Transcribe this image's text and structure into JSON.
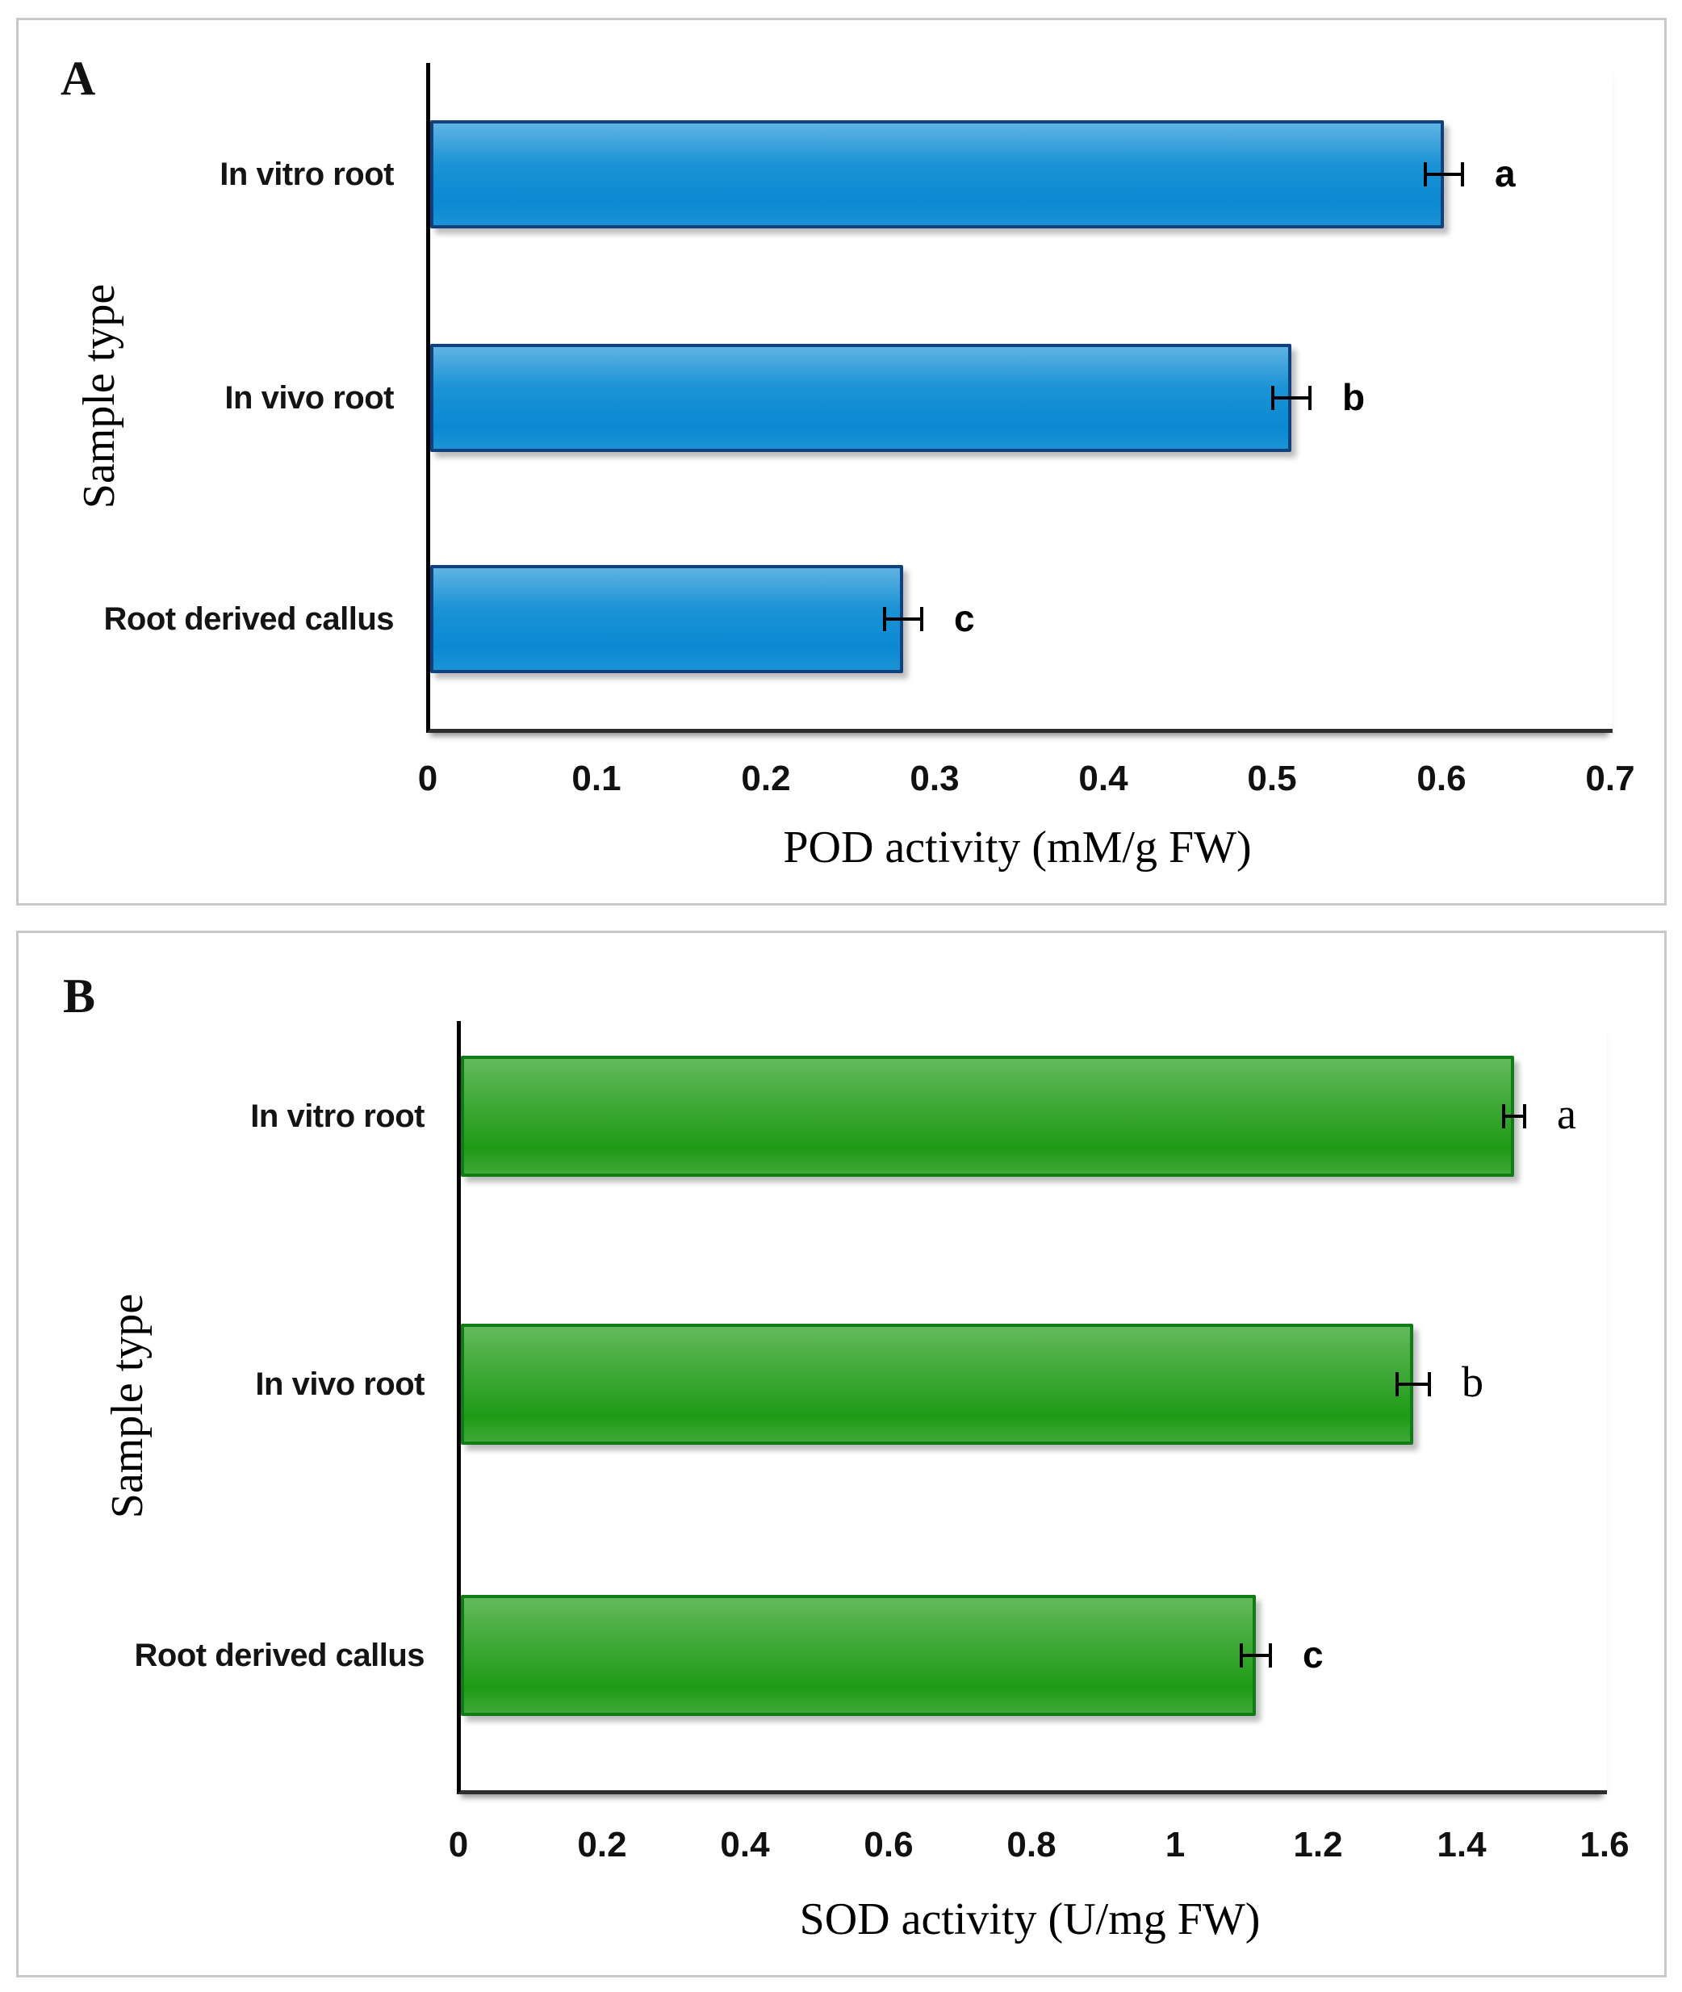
{
  "figure": {
    "background": "#ffffff",
    "panel_border_color": "#c8c8c8"
  },
  "chart_data": [
    {
      "type": "bar",
      "orientation": "horizontal",
      "panel_letter": "A",
      "xlabel": "POD activity (mM/g FW)",
      "ylabel": "Sample type",
      "categories": [
        "In vitro root",
        "In vivo root",
        "Root derived callus"
      ],
      "values": [
        0.6,
        0.51,
        0.28
      ],
      "errors": [
        0.011,
        0.011,
        0.011
      ],
      "sig_letters": [
        "a",
        "b",
        "c"
      ],
      "sig_letter_styles": [
        "sans",
        "sans",
        "sans"
      ],
      "x_ticks": [
        "0",
        "0.1",
        "0.2",
        "0.3",
        "0.4",
        "0.5",
        "0.6",
        "0.7"
      ],
      "xlim": [
        0,
        0.7
      ],
      "grid": false,
      "legend": "none",
      "bar_colors": {
        "fill": "#1b93d6",
        "fill_light": "#5fb3e2",
        "fill_dark": "#0a89d2",
        "border": "#10417f"
      }
    },
    {
      "type": "bar",
      "orientation": "horizontal",
      "panel_letter": "B",
      "xlabel": "SOD activity (U/mg FW)",
      "ylabel": "Sample type",
      "categories": [
        "In vitro root",
        "In vivo root",
        "Root derived callus"
      ],
      "values": [
        1.47,
        1.33,
        1.11
      ],
      "errors": [
        0.015,
        0.022,
        0.02
      ],
      "sig_letters": [
        "a",
        "b",
        "c"
      ],
      "sig_letter_styles": [
        "serif",
        "serif",
        "sans"
      ],
      "x_ticks": [
        "0",
        "0.2",
        "0.4",
        "0.6",
        "0.8",
        "1",
        "1.2",
        "1.4",
        "1.6"
      ],
      "xlim": [
        0,
        1.6
      ],
      "grid": false,
      "legend": "none",
      "bar_colors": {
        "fill": "#3fa937",
        "fill_light": "#63b95b",
        "fill_dark": "#1f9a16",
        "border": "#0f7c16"
      }
    }
  ]
}
